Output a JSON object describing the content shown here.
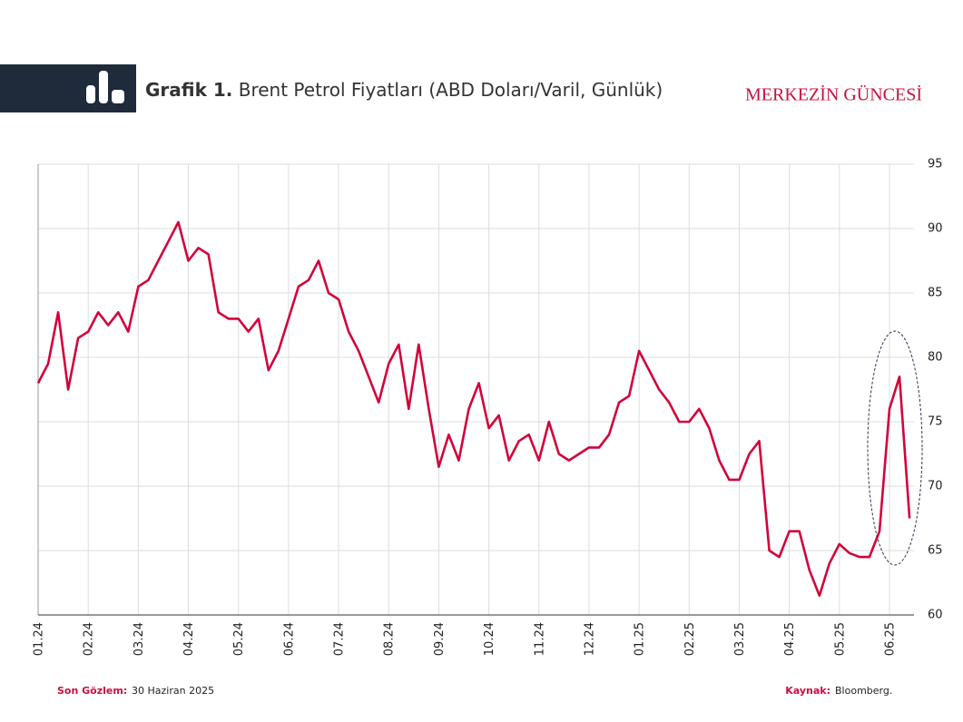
{
  "header": {
    "label": "Grafik 1.",
    "title": "Brent Petrol Fiyatları (ABD Doları/Varil, Günlük)",
    "brand": "MERKEZİN GÜNCESİ"
  },
  "footer": {
    "obs_label": "Son Gözlem:",
    "obs_value": "30 Haziran 2025",
    "source_label": "Kaynak:",
    "source_value": "Bloomberg."
  },
  "chart_data": {
    "type": "line",
    "categories": [
      "01.24",
      null,
      null,
      null,
      null,
      "02.24",
      null,
      null,
      null,
      null,
      "03.24",
      null,
      null,
      null,
      null,
      "04.24",
      null,
      null,
      null,
      null,
      "05.24",
      null,
      null,
      null,
      null,
      "06.24",
      null,
      null,
      null,
      null,
      "07.24",
      null,
      null,
      null,
      null,
      "08.24",
      null,
      null,
      null,
      null,
      "09.24",
      null,
      null,
      null,
      null,
      "10.24",
      null,
      null,
      null,
      null,
      "11.24",
      null,
      null,
      null,
      null,
      "12.24",
      null,
      null,
      null,
      null,
      "01.25",
      null,
      null,
      null,
      null,
      "02.25",
      null,
      null,
      null,
      null,
      "03.25",
      null,
      null,
      null,
      null,
      "04.25",
      null,
      null,
      null,
      null,
      "05.25",
      null,
      null,
      null,
      null,
      "06.25",
      null,
      null
    ],
    "series": [
      {
        "name": "Brent",
        "color": "#d2043a",
        "values": [
          78,
          79.5,
          83.5,
          77.5,
          81.5,
          82,
          83.5,
          82.5,
          83.5,
          82,
          85.5,
          86,
          87.5,
          89,
          90.5,
          87.5,
          88.5,
          88,
          83.5,
          83,
          83,
          82,
          83,
          79,
          80.5,
          83,
          85.5,
          86,
          87.5,
          85,
          84.5,
          82,
          80.5,
          78.5,
          76.5,
          79.5,
          81,
          76,
          81,
          76,
          71.5,
          74,
          72,
          76,
          78,
          74.5,
          75.5,
          72,
          73.5,
          74,
          72,
          75,
          72.5,
          72,
          72.5,
          73,
          73,
          74,
          76.5,
          77,
          80.5,
          79,
          77.5,
          76.5,
          75,
          75,
          76,
          74.5,
          72,
          70.5,
          70.5,
          72.5,
          73.5,
          65,
          64.5,
          66.5,
          66.5,
          63.5,
          61.5,
          64,
          65.5,
          64.8,
          64.5,
          64.5,
          66.5,
          76,
          78.5,
          67.5
        ]
      }
    ],
    "ylim": [
      60,
      95
    ],
    "yticks": [
      60,
      65,
      70,
      75,
      80,
      85,
      90,
      95
    ],
    "grid": true
  }
}
